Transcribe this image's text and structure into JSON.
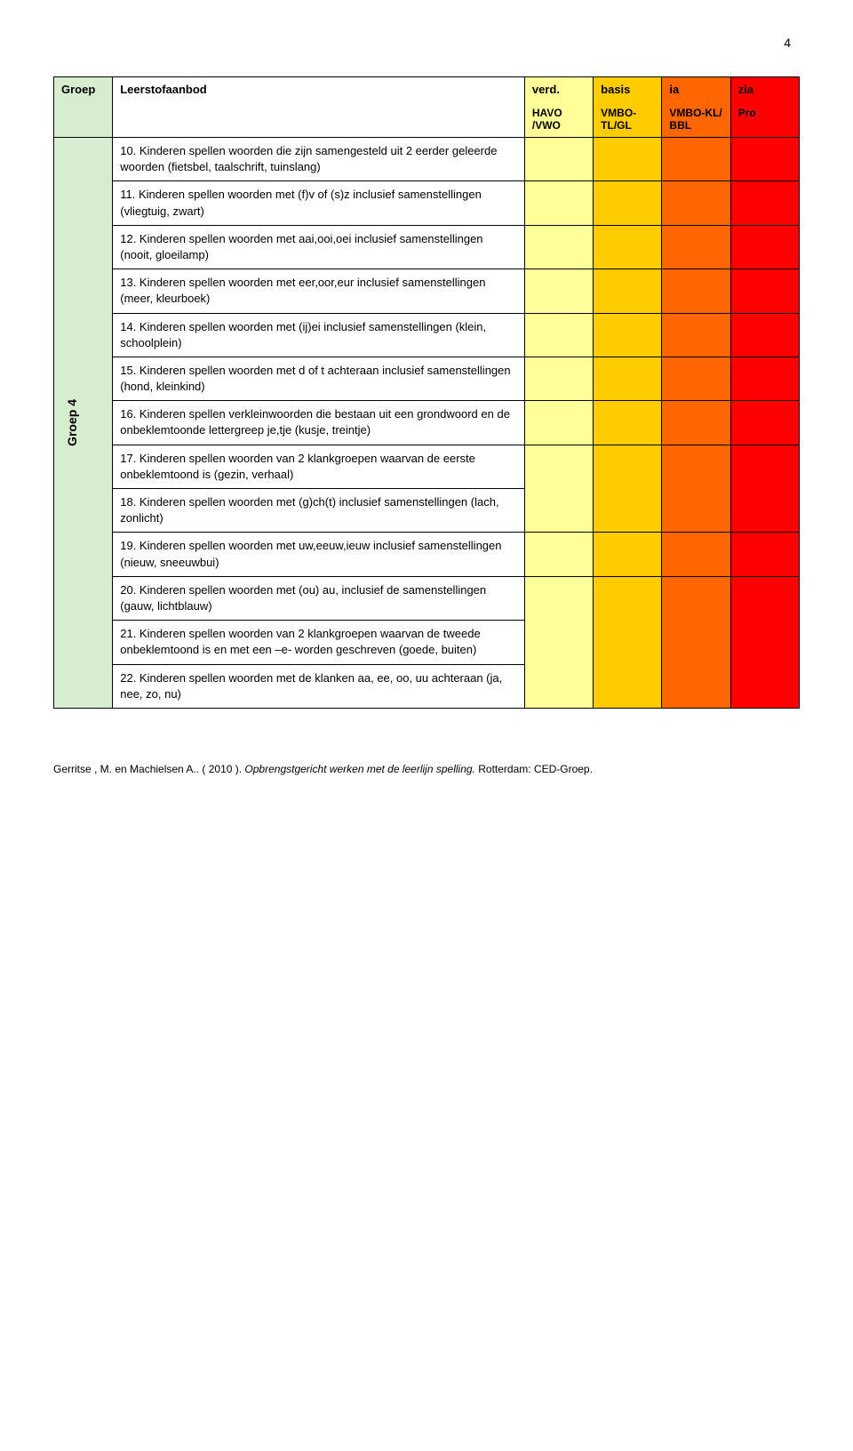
{
  "page_number": "4",
  "colors": {
    "groep_bg": "#d7edd0",
    "verd_bg": "#ffff99",
    "basis_bg": "#ffcc00",
    "ia_bg": "#ff6600",
    "zia_bg": "#ff0000"
  },
  "header": {
    "col_groep": "Groep",
    "col_content": "Leerstofaanbod",
    "col_verd": "verd.",
    "col_basis": "basis",
    "col_ia": "ia",
    "col_zia": "zia",
    "sub_verd": "HAVO /VWO",
    "sub_basis": "VMBO-TL/GL",
    "sub_ia": "VMBO-KL/ BBL",
    "sub_zia": "Pro"
  },
  "side_label": "Groep 4",
  "rows": [
    {
      "text": "10. Kinderen spellen woorden die zijn samengesteld uit 2 eerder geleerde woorden (fietsbel, taalschrift, tuinslang)"
    },
    {
      "text": "11. Kinderen spellen woorden met (f)v of (s)z inclusief samenstellingen (vliegtuig, zwart)"
    },
    {
      "text": "12. Kinderen spellen woorden met aai,ooi,oei inclusief samenstellingen (nooit, gloeilamp)"
    },
    {
      "text": "13. Kinderen spellen woorden met eer,oor,eur inclusief samenstellingen (meer, kleurboek)"
    },
    {
      "text": "14. Kinderen spellen woorden met (ij)ei inclusief samenstellingen (klein, schoolplein)"
    },
    {
      "text": "15. Kinderen spellen woorden met d of t achteraan inclusief samenstellingen (hond, kleinkind)"
    },
    {
      "text": "16. Kinderen spellen verkleinwoorden die bestaan uit een grondwoord en de onbeklemtoonde lettergreep je,tje (kusje, treintje)"
    },
    {
      "text": "17. Kinderen spellen woorden van 2 klankgroepen waarvan de eerste onbeklemtoond is (gezin, verhaal)"
    },
    {
      "text": "18. Kinderen spellen woorden met (g)ch(t) inclusief samenstellingen (lach, zonlicht)"
    },
    {
      "text": "19. Kinderen spellen woorden met uw,eeuw,ieuw inclusief samenstellingen (nieuw, sneeuwbui)"
    },
    {
      "text": "20. Kinderen spellen woorden met (ou) au, inclusief de samenstellingen (gauw, lichtblauw)"
    },
    {
      "text": "21. Kinderen spellen woorden van 2 klankgroepen waarvan de tweede onbeklemtoond is en met een –e- worden geschreven (goede, buiten)"
    },
    {
      "text": "22. Kinderen spellen woorden met de klanken aa, ee, oo, uu achteraan (ja, nee, zo, nu)"
    }
  ],
  "merges": [
    {
      "start": 0,
      "span": 1
    },
    {
      "start": 1,
      "span": 1
    },
    {
      "start": 2,
      "span": 1
    },
    {
      "start": 3,
      "span": 1
    },
    {
      "start": 4,
      "span": 1
    },
    {
      "start": 5,
      "span": 1
    },
    {
      "start": 6,
      "span": 1
    },
    {
      "start": 7,
      "span": 2
    },
    {
      "start": 9,
      "span": 1
    },
    {
      "start": 10,
      "span": 3
    }
  ],
  "footer": {
    "authors": "Gerritse , M. en Machielsen A.. ( 2010 ). ",
    "title_italic": "Opbrengstgericht werken met de leerlijn spelling.",
    "rest": " Rotterdam: CED-Groep."
  }
}
